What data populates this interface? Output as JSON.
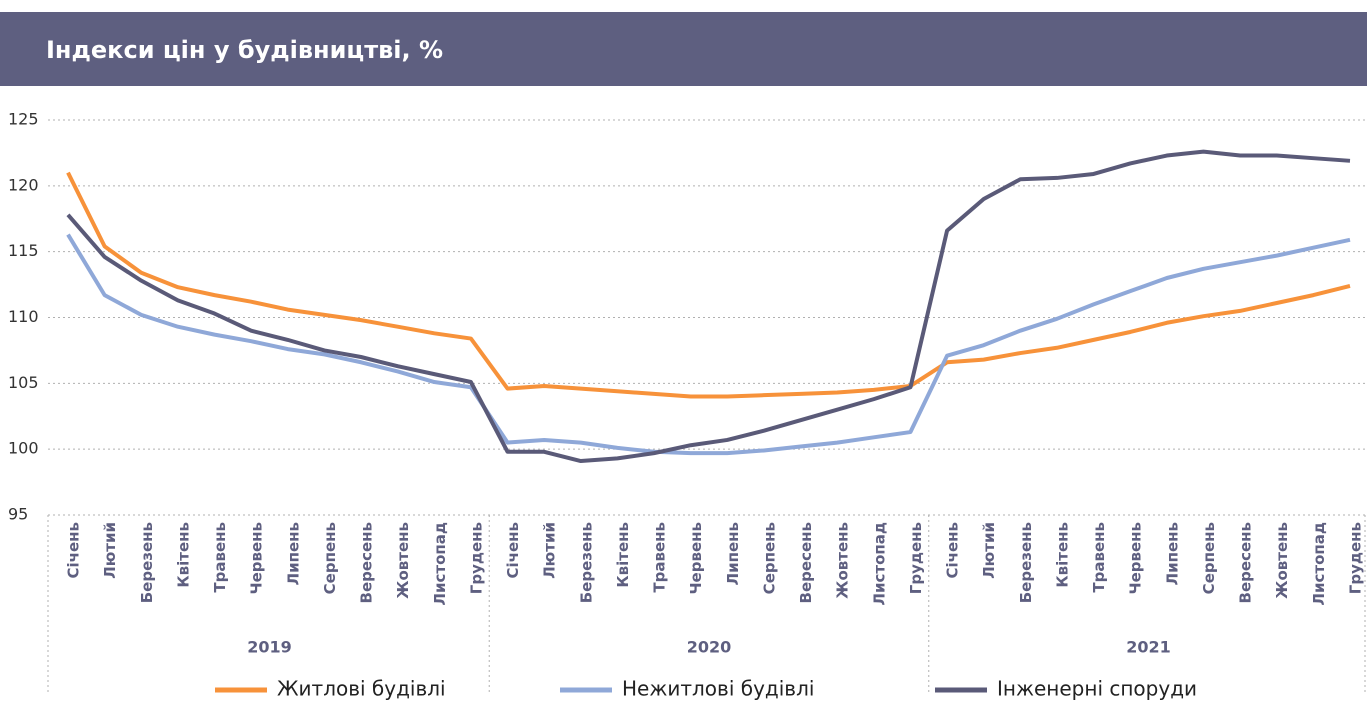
{
  "chart_data": {
    "type": "line",
    "title": "Індекси цін у будівництві, %",
    "categories": [
      "Січень",
      "Лютий",
      "Березень",
      "Квітень",
      "Травень",
      "Червень",
      "Липень",
      "Серпень",
      "Вересень",
      "Жовтень",
      "Листопад",
      "Грудень",
      "Січень",
      "Лютий",
      "Березень",
      "Квітень",
      "Травень",
      "Червень",
      "Липень",
      "Серпень",
      "Вересень",
      "Жовтень",
      "Листопад",
      "Грудень",
      "Січень",
      "Лютий",
      "Березень",
      "Квітень",
      "Травень",
      "Червень",
      "Липень",
      "Серпень",
      "Вересень",
      "Жовтень",
      "Листопад",
      "Грудень"
    ],
    "year_groups": [
      "2019",
      "2020",
      "2021"
    ],
    "series": [
      {
        "name": "Житлові будівлі",
        "color": "#f7923a",
        "values": [
          121,
          115.4,
          113.4,
          112.3,
          111.7,
          111.2,
          110.6,
          110.2,
          109.8,
          109.3,
          108.8,
          108.4,
          104.6,
          104.8,
          104.6,
          104.4,
          104.2,
          104.0,
          104.0,
          104.1,
          104.2,
          104.3,
          104.5,
          104.8,
          106.6,
          106.8,
          107.3,
          107.7,
          108.3,
          108.9,
          109.6,
          110.1,
          110.5,
          111.1,
          111.7,
          112.4
        ]
      },
      {
        "name": "Нежитлові будівлі",
        "color": "#8fa8d8",
        "values": [
          116.3,
          111.7,
          110.2,
          109.3,
          108.7,
          108.2,
          107.6,
          107.2,
          106.6,
          105.9,
          105.1,
          104.7,
          100.5,
          100.7,
          100.5,
          100.1,
          99.8,
          99.7,
          99.7,
          99.9,
          100.2,
          100.5,
          100.9,
          101.3,
          107.1,
          107.9,
          109.0,
          109.9,
          111.0,
          112.0,
          113.0,
          113.7,
          114.2,
          114.7,
          115.3,
          115.9
        ]
      },
      {
        "name": "Інженерні споруди",
        "color": "#5a5a78",
        "values": [
          117.8,
          114.6,
          112.8,
          111.3,
          110.3,
          109.0,
          108.3,
          107.5,
          107.0,
          106.3,
          105.7,
          105.1,
          99.8,
          99.8,
          99.1,
          99.3,
          99.7,
          100.3,
          100.7,
          101.4,
          102.2,
          103.0,
          103.8,
          104.7,
          116.6,
          119.0,
          120.5,
          120.6,
          120.9,
          121.7,
          122.3,
          122.6,
          122.3,
          122.3,
          122.1,
          121.9
        ]
      }
    ],
    "ylim": [
      95,
      125
    ],
    "yticks": [
      95,
      100,
      105,
      110,
      115,
      120,
      125
    ],
    "grid": true
  }
}
